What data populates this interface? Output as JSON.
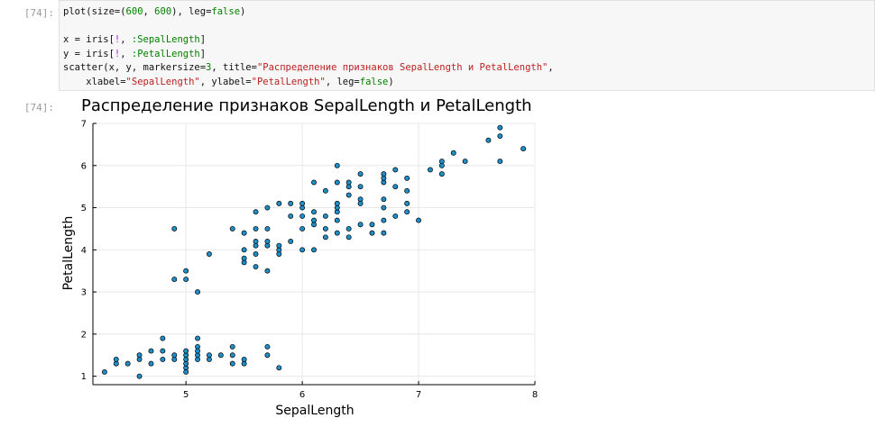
{
  "input_prompt": "[74]:",
  "output_prompt": "[74]:",
  "code": {
    "line1": {
      "a": "plot(size=(",
      "n1": "600",
      "b": ", ",
      "n2": "600",
      "c": "), leg=",
      "kw": "false",
      "d": ")"
    },
    "line3": {
      "a": "x = iris[",
      "op": "!",
      "b": ", ",
      "sym": ":SepalLength",
      "c": "]"
    },
    "line4": {
      "a": "y = iris[",
      "op": "!",
      "b": ", ",
      "sym": ":PetalLength",
      "c": "]"
    },
    "line5": {
      "a": "scatter(x, y, markersize=",
      "n": "3",
      "b": ", title=",
      "s": "\"Распределение признаков SepalLength и PetalLength\"",
      "c": ","
    },
    "line6": {
      "a": "    xlabel=",
      "s1": "\"SepalLength\"",
      "b": ", ylabel=",
      "s2": "\"PetalLength\"",
      "c": ", leg=",
      "kw": "false",
      "d": ")"
    }
  },
  "chart_data": {
    "type": "scatter",
    "title": "Распределение признаков SepalLength и PetalLength",
    "xlabel": "SepalLength",
    "ylabel": "PetalLength",
    "xlim": [
      4.2,
      8.0
    ],
    "ylim": [
      0.8,
      7.0
    ],
    "xticks": [
      5,
      6,
      7,
      8
    ],
    "yticks": [
      1,
      2,
      3,
      4,
      5,
      6,
      7
    ],
    "grid": true,
    "legend": false,
    "marker_color": "#1f8fc9",
    "points": [
      [
        4.3,
        1.1
      ],
      [
        4.4,
        1.3
      ],
      [
        4.4,
        1.4
      ],
      [
        4.5,
        1.3
      ],
      [
        4.6,
        1.0
      ],
      [
        4.6,
        1.4
      ],
      [
        4.6,
        1.5
      ],
      [
        4.7,
        1.3
      ],
      [
        4.7,
        1.6
      ],
      [
        4.8,
        1.4
      ],
      [
        4.8,
        1.6
      ],
      [
        4.8,
        1.9
      ],
      [
        4.9,
        1.4
      ],
      [
        4.9,
        1.5
      ],
      [
        5.0,
        1.2
      ],
      [
        5.0,
        1.3
      ],
      [
        5.0,
        1.4
      ],
      [
        5.0,
        1.5
      ],
      [
        5.0,
        1.6
      ],
      [
        5.1,
        1.4
      ],
      [
        5.1,
        1.5
      ],
      [
        5.1,
        1.7
      ],
      [
        5.1,
        1.9
      ],
      [
        5.1,
        1.6
      ],
      [
        5.2,
        1.4
      ],
      [
        5.2,
        1.5
      ],
      [
        5.3,
        1.5
      ],
      [
        5.4,
        1.3
      ],
      [
        5.4,
        1.5
      ],
      [
        5.4,
        1.7
      ],
      [
        5.5,
        1.3
      ],
      [
        5.5,
        1.4
      ],
      [
        5.7,
        1.5
      ],
      [
        5.7,
        1.7
      ],
      [
        5.8,
        1.2
      ],
      [
        5.0,
        1.1
      ],
      [
        4.9,
        3.3
      ],
      [
        4.9,
        4.5
      ],
      [
        5.0,
        3.3
      ],
      [
        5.0,
        3.5
      ],
      [
        5.1,
        3.0
      ],
      [
        5.2,
        3.9
      ],
      [
        5.4,
        4.5
      ],
      [
        5.5,
        3.7
      ],
      [
        5.5,
        3.8
      ],
      [
        5.5,
        4.0
      ],
      [
        5.5,
        4.4
      ],
      [
        5.6,
        3.6
      ],
      [
        5.6,
        3.9
      ],
      [
        5.6,
        4.1
      ],
      [
        5.6,
        4.2
      ],
      [
        5.6,
        4.5
      ],
      [
        5.6,
        4.9
      ],
      [
        5.7,
        3.5
      ],
      [
        5.7,
        4.1
      ],
      [
        5.7,
        4.2
      ],
      [
        5.7,
        4.5
      ],
      [
        5.7,
        5.0
      ],
      [
        5.8,
        3.9
      ],
      [
        5.8,
        4.0
      ],
      [
        5.8,
        4.1
      ],
      [
        5.8,
        5.1
      ],
      [
        5.9,
        4.2
      ],
      [
        5.9,
        4.8
      ],
      [
        5.9,
        5.1
      ],
      [
        6.0,
        4.0
      ],
      [
        6.0,
        4.5
      ],
      [
        6.0,
        4.8
      ],
      [
        6.0,
        5.0
      ],
      [
        6.0,
        5.1
      ],
      [
        6.1,
        4.0
      ],
      [
        6.1,
        4.6
      ],
      [
        6.1,
        4.7
      ],
      [
        6.1,
        4.9
      ],
      [
        6.1,
        5.6
      ],
      [
        6.2,
        4.3
      ],
      [
        6.2,
        4.5
      ],
      [
        6.2,
        4.8
      ],
      [
        6.2,
        5.4
      ],
      [
        6.3,
        4.4
      ],
      [
        6.3,
        4.7
      ],
      [
        6.3,
        4.9
      ],
      [
        6.3,
        5.0
      ],
      [
        6.3,
        5.1
      ],
      [
        6.3,
        5.6
      ],
      [
        6.3,
        6.0
      ],
      [
        6.4,
        4.3
      ],
      [
        6.4,
        4.5
      ],
      [
        6.4,
        5.3
      ],
      [
        6.4,
        5.5
      ],
      [
        6.4,
        5.6
      ],
      [
        6.5,
        4.6
      ],
      [
        6.5,
        5.1
      ],
      [
        6.5,
        5.2
      ],
      [
        6.5,
        5.5
      ],
      [
        6.5,
        5.8
      ],
      [
        6.6,
        4.4
      ],
      [
        6.6,
        4.6
      ],
      [
        6.7,
        4.4
      ],
      [
        6.7,
        4.7
      ],
      [
        6.7,
        5.0
      ],
      [
        6.7,
        5.2
      ],
      [
        6.7,
        5.6
      ],
      [
        6.7,
        5.7
      ],
      [
        6.7,
        5.8
      ],
      [
        6.8,
        4.8
      ],
      [
        6.8,
        5.5
      ],
      [
        6.8,
        5.9
      ],
      [
        6.9,
        4.9
      ],
      [
        6.9,
        5.1
      ],
      [
        6.9,
        5.4
      ],
      [
        6.9,
        5.7
      ],
      [
        7.0,
        4.7
      ],
      [
        7.1,
        5.9
      ],
      [
        7.2,
        5.8
      ],
      [
        7.2,
        6.0
      ],
      [
        7.2,
        6.1
      ],
      [
        7.3,
        6.3
      ],
      [
        7.4,
        6.1
      ],
      [
        7.6,
        6.6
      ],
      [
        7.7,
        6.1
      ],
      [
        7.7,
        6.7
      ],
      [
        7.7,
        6.9
      ],
      [
        7.9,
        6.4
      ]
    ]
  }
}
